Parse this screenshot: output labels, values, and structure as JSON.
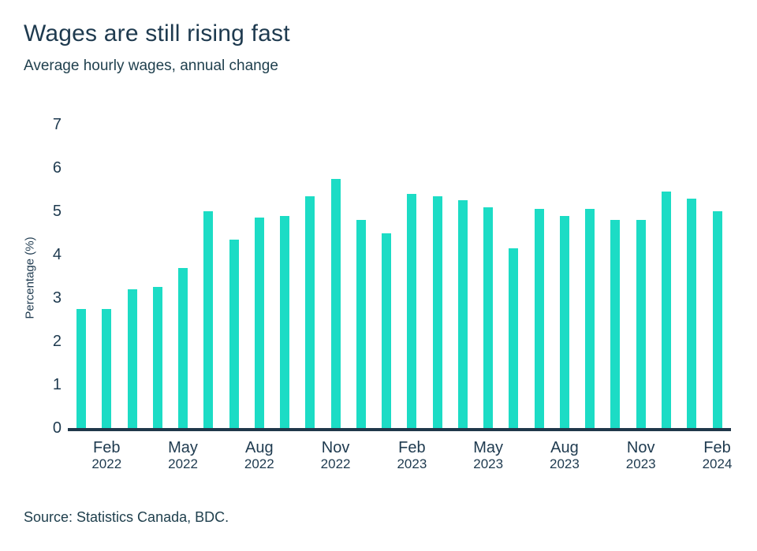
{
  "header": {
    "title": "Wages are still rising fast",
    "subtitle": "Average hourly wages, annual change"
  },
  "chart_data": {
    "type": "bar",
    "title": "Wages are still rising fast",
    "subtitle": "Average hourly wages, annual change",
    "ylabel": "Percentage (%)",
    "xlabel": "",
    "ylim": [
      0,
      7
    ],
    "yticks": [
      0,
      1,
      2,
      3,
      4,
      5,
      6,
      7
    ],
    "grid": false,
    "legend": false,
    "bar_color": "#1cdcc5",
    "axis_color": "#20374a",
    "text_color": "#1e3a4f",
    "categories": [
      "Jan 2022",
      "Feb 2022",
      "Mar 2022",
      "Apr 2022",
      "May 2022",
      "Jun 2022",
      "Jul 2022",
      "Aug 2022",
      "Sep 2022",
      "Oct 2022",
      "Nov 2022",
      "Dec 2022",
      "Jan 2023",
      "Feb 2023",
      "Mar 2023",
      "Apr 2023",
      "May 2023",
      "Jun 2023",
      "Jul 2023",
      "Aug 2023",
      "Sep 2023",
      "Oct 2023",
      "Nov 2023",
      "Dec 2023",
      "Jan 2024",
      "Feb 2024"
    ],
    "values": [
      2.75,
      2.75,
      3.2,
      3.25,
      3.7,
      5.0,
      4.35,
      4.85,
      4.9,
      5.35,
      5.75,
      4.8,
      4.5,
      5.4,
      5.35,
      5.25,
      5.1,
      4.15,
      5.05,
      4.9,
      5.05,
      4.8,
      4.8,
      5.45,
      5.3,
      5.0
    ],
    "x_tick_indices": [
      1,
      4,
      7,
      10,
      13,
      16,
      19,
      22,
      25
    ],
    "x_tick_labels": [
      {
        "month": "Feb",
        "year": "2022"
      },
      {
        "month": "May",
        "year": "2022"
      },
      {
        "month": "Aug",
        "year": "2022"
      },
      {
        "month": "Nov",
        "year": "2022"
      },
      {
        "month": "Feb",
        "year": "2023"
      },
      {
        "month": "May",
        "year": "2023"
      },
      {
        "month": "Aug",
        "year": "2023"
      },
      {
        "month": "Nov",
        "year": "2023"
      },
      {
        "month": "Feb",
        "year": "2024"
      }
    ]
  },
  "footer": {
    "source": "Source: Statistics Canada, BDC."
  }
}
